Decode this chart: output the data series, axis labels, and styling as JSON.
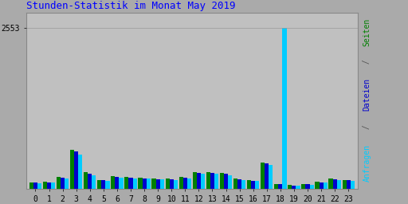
{
  "title": "Stunden-Statistik im Monat May 2019",
  "hours": [
    0,
    1,
    2,
    3,
    4,
    5,
    6,
    7,
    8,
    9,
    10,
    11,
    12,
    13,
    14,
    15,
    16,
    17,
    18,
    19,
    20,
    21,
    22,
    23
  ],
  "seiten": [
    100,
    115,
    190,
    620,
    260,
    145,
    205,
    185,
    180,
    165,
    160,
    190,
    265,
    270,
    250,
    165,
    140,
    420,
    80,
    60,
    80,
    110,
    160,
    145
  ],
  "dateien": [
    95,
    105,
    175,
    590,
    235,
    140,
    195,
    175,
    170,
    155,
    150,
    180,
    248,
    255,
    235,
    155,
    128,
    400,
    75,
    55,
    73,
    100,
    148,
    138
  ],
  "anfragen": [
    90,
    100,
    160,
    540,
    210,
    125,
    180,
    165,
    160,
    148,
    140,
    170,
    235,
    240,
    220,
    145,
    120,
    375,
    2553,
    50,
    68,
    95,
    140,
    130
  ],
  "seiten_color": "#008000",
  "dateien_color": "#0000CC",
  "anfragen_color": "#00CCFF",
  "bg_color": "#AAAAAA",
  "plot_bg_color": "#C0C0C0",
  "title_color": "#0000FF",
  "ylim_max": 2800,
  "ytick_val": 2553,
  "bar_width": 0.3,
  "grid_color": "#999999",
  "label_seiten": "Seiten",
  "label_slash": " / ",
  "label_dateien": "Dateien",
  "label_anfragen": "Anfragen",
  "color_slash": "#555555"
}
